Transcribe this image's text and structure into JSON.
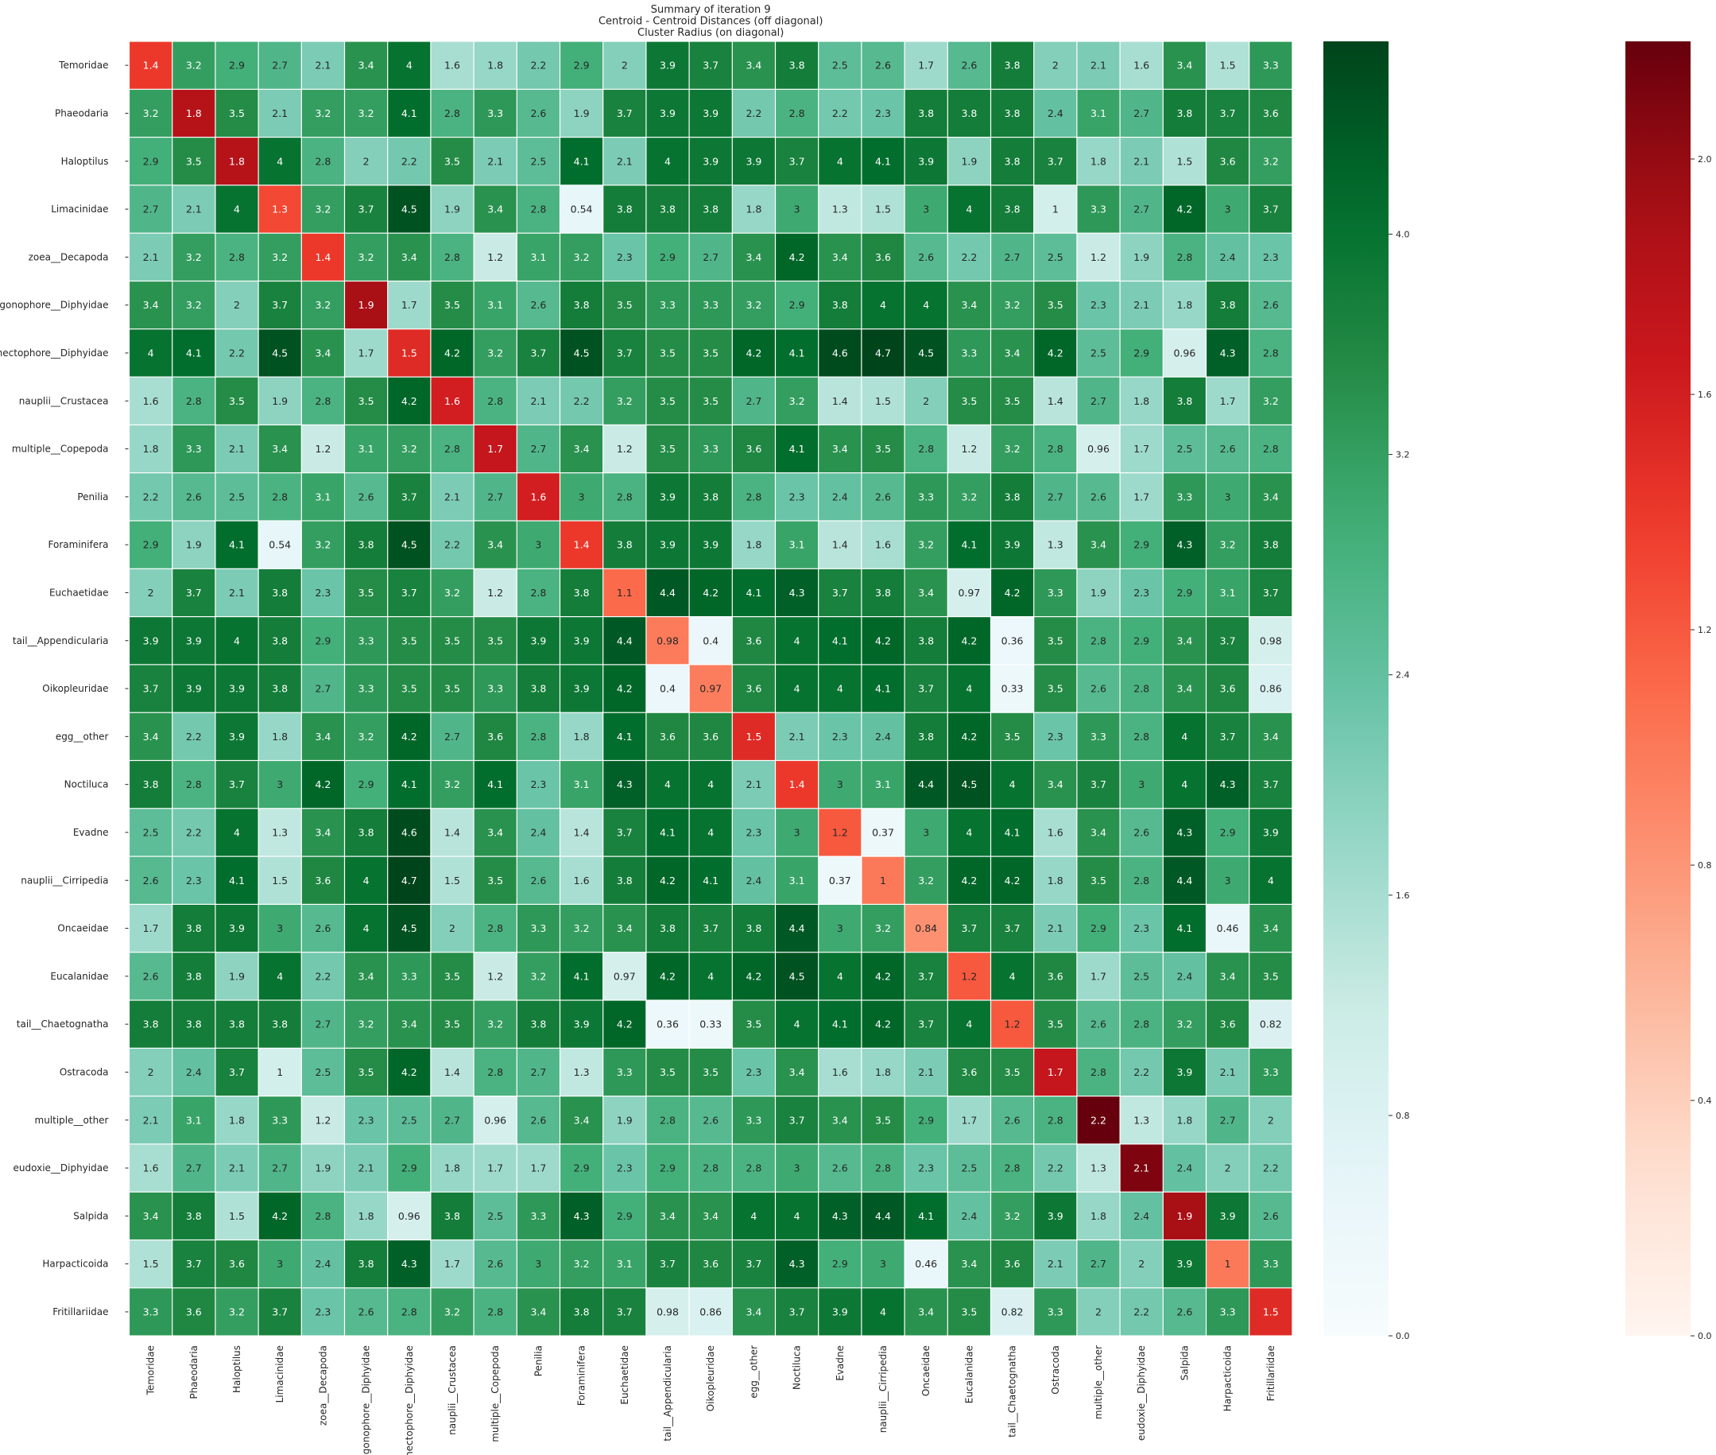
{
  "chart_data": {
    "type": "heatmap",
    "title_lines": [
      "Summary of iteration 9",
      "Centroid - Centroid Distances (off diagonal)",
      "Cluster Radius (on diagonal)"
    ],
    "xlabel": "",
    "ylabel": "",
    "categories": [
      "Temoridae",
      "Phaeodaria",
      "Haloptilus",
      "Limacinidae",
      "zoea__Decapoda",
      "gonophore__Diphyidae",
      "nectophore__Diphyidae",
      "nauplii__Crustacea",
      "multiple__Copepoda",
      "Penilia",
      "Foraminifera",
      "Euchaetidae",
      "tail__Appendicularia",
      "Oikopleuridae",
      "egg__other",
      "Noctiluca",
      "Evadne",
      "nauplii__Cirripedia",
      "Oncaeidae",
      "Eucalanidae",
      "tail__Chaetognatha",
      "Ostracoda",
      "multiple__other",
      "eudoxie__Diphyidae",
      "Salpida",
      "Harpacticoida",
      "Fritillariidae"
    ],
    "matrix": [
      [
        1.4,
        3.2,
        2.9,
        2.7,
        2.1,
        3.4,
        4,
        1.6,
        1.8,
        2.2,
        2.9,
        2,
        3.9,
        3.7,
        3.4,
        3.8,
        2.5,
        2.6,
        1.7,
        2.6,
        3.8,
        2,
        2.1,
        1.6,
        3.4,
        1.5,
        3.3
      ],
      [
        3.2,
        1.8,
        3.5,
        2.1,
        3.2,
        3.2,
        4.1,
        2.8,
        3.3,
        2.6,
        1.9,
        3.7,
        3.9,
        3.9,
        2.2,
        2.8,
        2.2,
        2.3,
        3.8,
        3.8,
        3.8,
        2.4,
        3.1,
        2.7,
        3.8,
        3.7,
        3.6
      ],
      [
        2.9,
        3.5,
        1.8,
        4,
        2.8,
        2,
        2.2,
        3.5,
        2.1,
        2.5,
        4.1,
        2.1,
        4,
        3.9,
        3.9,
        3.7,
        4,
        4.1,
        3.9,
        1.9,
        3.8,
        3.7,
        1.8,
        2.1,
        1.5,
        3.6,
        3.2
      ],
      [
        2.7,
        2.1,
        4,
        1.3,
        3.2,
        3.7,
        4.5,
        1.9,
        3.4,
        2.8,
        0.54,
        3.8,
        3.8,
        3.8,
        1.8,
        3,
        1.3,
        1.5,
        3,
        4,
        3.8,
        1,
        3.3,
        2.7,
        4.2,
        3,
        3.7
      ],
      [
        2.1,
        3.2,
        2.8,
        3.2,
        1.4,
        3.2,
        3.4,
        2.8,
        1.2,
        3.1,
        3.2,
        2.3,
        2.9,
        2.7,
        3.4,
        4.2,
        3.4,
        3.6,
        2.6,
        2.2,
        2.7,
        2.5,
        1.2,
        1.9,
        2.8,
        2.4,
        2.3
      ],
      [
        3.4,
        3.2,
        2,
        3.7,
        3.2,
        1.9,
        1.7,
        3.5,
        3.1,
        2.6,
        3.8,
        3.5,
        3.3,
        3.3,
        3.2,
        2.9,
        3.8,
        4,
        4,
        3.4,
        3.2,
        3.5,
        2.3,
        2.1,
        1.8,
        3.8,
        2.6
      ],
      [
        4,
        4.1,
        2.2,
        4.5,
        3.4,
        1.7,
        1.5,
        4.2,
        3.2,
        3.7,
        4.5,
        3.7,
        3.5,
        3.5,
        4.2,
        4.1,
        4.6,
        4.7,
        4.5,
        3.3,
        3.4,
        4.2,
        2.5,
        2.9,
        0.96,
        4.3,
        2.8
      ],
      [
        1.6,
        2.8,
        3.5,
        1.9,
        2.8,
        3.5,
        4.2,
        1.6,
        2.8,
        2.1,
        2.2,
        3.2,
        3.5,
        3.5,
        2.7,
        3.2,
        1.4,
        1.5,
        2,
        3.5,
        3.5,
        1.4,
        2.7,
        1.8,
        3.8,
        1.7,
        3.2
      ],
      [
        1.8,
        3.3,
        2.1,
        3.4,
        1.2,
        3.1,
        3.2,
        2.8,
        1.7,
        2.7,
        3.4,
        1.2,
        3.5,
        3.3,
        3.6,
        4.1,
        3.4,
        3.5,
        2.8,
        1.2,
        3.2,
        2.8,
        0.96,
        1.7,
        2.5,
        2.6,
        2.8
      ],
      [
        2.2,
        2.6,
        2.5,
        2.8,
        3.1,
        2.6,
        3.7,
        2.1,
        2.7,
        1.6,
        3,
        2.8,
        3.9,
        3.8,
        2.8,
        2.3,
        2.4,
        2.6,
        3.3,
        3.2,
        3.8,
        2.7,
        2.6,
        1.7,
        3.3,
        3,
        3.4
      ],
      [
        2.9,
        1.9,
        4.1,
        0.54,
        3.2,
        3.8,
        4.5,
        2.2,
        3.4,
        3,
        1.4,
        3.8,
        3.9,
        3.9,
        1.8,
        3.1,
        1.4,
        1.6,
        3.2,
        4.1,
        3.9,
        1.3,
        3.4,
        2.9,
        4.3,
        3.2,
        3.8
      ],
      [
        2,
        3.7,
        2.1,
        3.8,
        2.3,
        3.5,
        3.7,
        3.2,
        1.2,
        2.8,
        3.8,
        1.1,
        4.4,
        4.2,
        4.1,
        4.3,
        3.7,
        3.8,
        3.4,
        0.97,
        4.2,
        3.3,
        1.9,
        2.3,
        2.9,
        3.1,
        3.7
      ],
      [
        3.9,
        3.9,
        4,
        3.8,
        2.9,
        3.3,
        3.5,
        3.5,
        3.5,
        3.9,
        3.9,
        4.4,
        0.98,
        0.4,
        3.6,
        4,
        4.1,
        4.2,
        3.8,
        4.2,
        0.36,
        3.5,
        2.8,
        2.9,
        3.4,
        3.7,
        0.98
      ],
      [
        3.7,
        3.9,
        3.9,
        3.8,
        2.7,
        3.3,
        3.5,
        3.5,
        3.3,
        3.8,
        3.9,
        4.2,
        0.4,
        0.97,
        3.6,
        4,
        4,
        4.1,
        3.7,
        4,
        0.33,
        3.5,
        2.6,
        2.8,
        3.4,
        3.6,
        0.86
      ],
      [
        3.4,
        2.2,
        3.9,
        1.8,
        3.4,
        3.2,
        4.2,
        2.7,
        3.6,
        2.8,
        1.8,
        4.1,
        3.6,
        3.6,
        1.5,
        2.1,
        2.3,
        2.4,
        3.8,
        4.2,
        3.5,
        2.3,
        3.3,
        2.8,
        4,
        3.7,
        3.4
      ],
      [
        3.8,
        2.8,
        3.7,
        3,
        4.2,
        2.9,
        4.1,
        3.2,
        4.1,
        2.3,
        3.1,
        4.3,
        4,
        4,
        2.1,
        1.4,
        3,
        3.1,
        4.4,
        4.5,
        4,
        3.4,
        3.7,
        3,
        4,
        4.3,
        3.7
      ],
      [
        2.5,
        2.2,
        4,
        1.3,
        3.4,
        3.8,
        4.6,
        1.4,
        3.4,
        2.4,
        1.4,
        3.7,
        4.1,
        4,
        2.3,
        3,
        1.2,
        0.37,
        3,
        4,
        4.1,
        1.6,
        3.4,
        2.6,
        4.3,
        2.9,
        3.9
      ],
      [
        2.6,
        2.3,
        4.1,
        1.5,
        3.6,
        4,
        4.7,
        1.5,
        3.5,
        2.6,
        1.6,
        3.8,
        4.2,
        4.1,
        2.4,
        3.1,
        0.37,
        1,
        3.2,
        4.2,
        4.2,
        1.8,
        3.5,
        2.8,
        4.4,
        3,
        4
      ],
      [
        1.7,
        3.8,
        3.9,
        3,
        2.6,
        4,
        4.5,
        2,
        2.8,
        3.3,
        3.2,
        3.4,
        3.8,
        3.7,
        3.8,
        4.4,
        3,
        3.2,
        0.84,
        3.7,
        3.7,
        2.1,
        2.9,
        2.3,
        4.1,
        0.46,
        3.4
      ],
      [
        2.6,
        3.8,
        1.9,
        4,
        2.2,
        3.4,
        3.3,
        3.5,
        1.2,
        3.2,
        4.1,
        0.97,
        4.2,
        4,
        4.2,
        4.5,
        4,
        4.2,
        3.7,
        1.2,
        4,
        3.6,
        1.7,
        2.5,
        2.4,
        3.4,
        3.5
      ],
      [
        3.8,
        3.8,
        3.8,
        3.8,
        2.7,
        3.2,
        3.4,
        3.5,
        3.2,
        3.8,
        3.9,
        4.2,
        0.36,
        0.33,
        3.5,
        4,
        4.1,
        4.2,
        3.7,
        4,
        1.2,
        3.5,
        2.6,
        2.8,
        3.2,
        3.6,
        0.82
      ],
      [
        2,
        2.4,
        3.7,
        1,
        2.5,
        3.5,
        4.2,
        1.4,
        2.8,
        2.7,
        1.3,
        3.3,
        3.5,
        3.5,
        2.3,
        3.4,
        1.6,
        1.8,
        2.1,
        3.6,
        3.5,
        1.7,
        2.8,
        2.2,
        3.9,
        2.1,
        3.3
      ],
      [
        2.1,
        3.1,
        1.8,
        3.3,
        1.2,
        2.3,
        2.5,
        2.7,
        0.96,
        2.6,
        3.4,
        1.9,
        2.8,
        2.6,
        3.3,
        3.7,
        3.4,
        3.5,
        2.9,
        1.7,
        2.6,
        2.8,
        2.2,
        1.3,
        1.8,
        2.7,
        2
      ],
      [
        1.6,
        2.7,
        2.1,
        2.7,
        1.9,
        2.1,
        2.9,
        1.8,
        1.7,
        1.7,
        2.9,
        2.3,
        2.9,
        2.8,
        2.8,
        3,
        2.6,
        2.8,
        2.3,
        2.5,
        2.8,
        2.2,
        1.3,
        2.1,
        2.4,
        2,
        2.2
      ],
      [
        3.4,
        3.8,
        1.5,
        4.2,
        2.8,
        1.8,
        0.96,
        3.8,
        2.5,
        3.3,
        4.3,
        2.9,
        3.4,
        3.4,
        4,
        4,
        4.3,
        4.4,
        4.1,
        2.4,
        3.2,
        3.9,
        1.8,
        2.4,
        1.9,
        3.9,
        2.6
      ],
      [
        1.5,
        3.7,
        3.6,
        3,
        2.4,
        3.8,
        4.3,
        1.7,
        2.6,
        3,
        3.2,
        3.1,
        3.7,
        3.6,
        3.7,
        4.3,
        2.9,
        3,
        0.46,
        3.4,
        3.6,
        2.1,
        2.7,
        2,
        3.9,
        1,
        3.3
      ],
      [
        3.3,
        3.6,
        3.2,
        3.7,
        2.3,
        2.6,
        2.8,
        3.2,
        2.8,
        3.4,
        3.8,
        3.7,
        0.98,
        0.86,
        3.4,
        3.7,
        3.9,
        4,
        3.4,
        3.5,
        0.82,
        3.3,
        2,
        2.2,
        2.6,
        3.3,
        1.5
      ]
    ],
    "green_colorbar": {
      "colormap": "BuGn",
      "range": [
        0,
        4.7
      ],
      "ticks": [
        0.0,
        0.8,
        1.6,
        2.4,
        3.2,
        4.0
      ]
    },
    "red_colorbar": {
      "colormap": "Reds",
      "range": [
        0,
        2.2
      ],
      "ticks": [
        0.0,
        0.4,
        0.8,
        1.2,
        1.6,
        2.0
      ]
    }
  }
}
